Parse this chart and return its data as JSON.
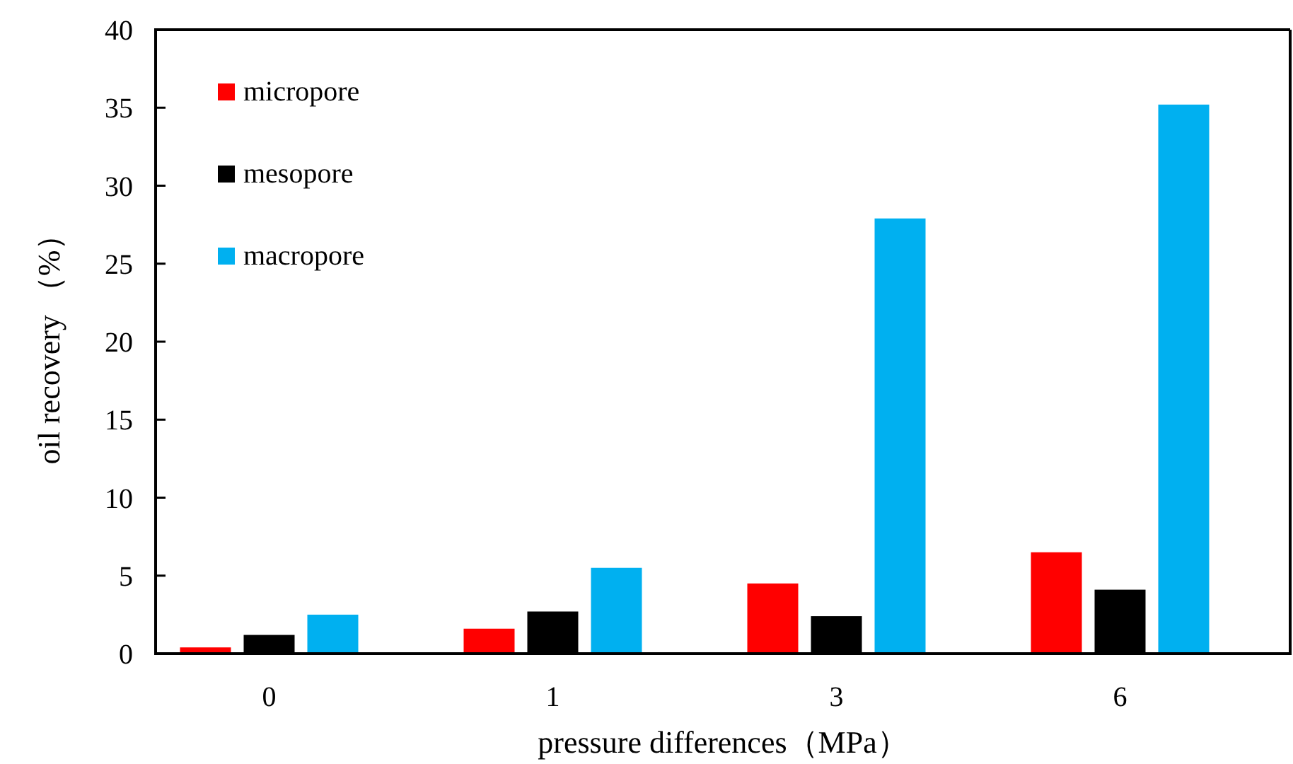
{
  "chart_data": {
    "type": "bar",
    "xlabel": "pressure differences（MPa）",
    "ylabel": "oil recovery （%）",
    "categories": [
      "0",
      "1",
      "3",
      "6"
    ],
    "series": [
      {
        "name": "micropore",
        "color": "#ff0000",
        "values": [
          0.4,
          1.6,
          4.5,
          6.5
        ]
      },
      {
        "name": "mesopore",
        "color": "#000000",
        "values": [
          1.2,
          2.7,
          2.4,
          4.1
        ]
      },
      {
        "name": "macropore",
        "color": "#00b0f0",
        "values": [
          2.5,
          5.5,
          27.9,
          35.2
        ]
      }
    ],
    "ylim": [
      0,
      40
    ],
    "yticks": [
      0,
      5,
      10,
      15,
      20,
      25,
      30,
      35,
      40
    ],
    "legend": "top left",
    "grid": false
  }
}
